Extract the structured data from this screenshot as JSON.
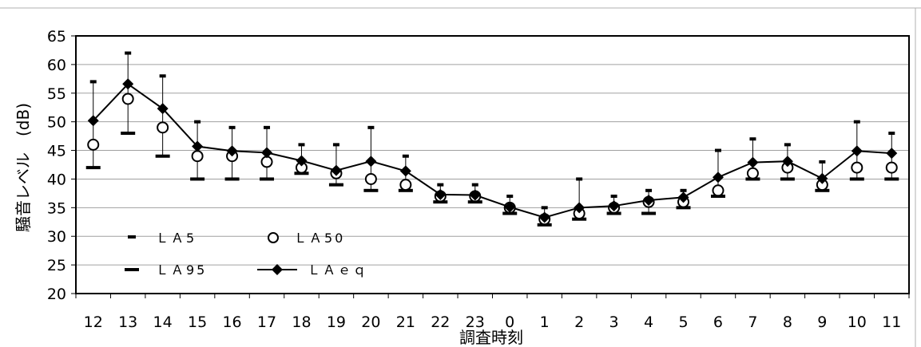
{
  "chart_data": {
    "type": "line",
    "xlabel": "調査時刻",
    "ylabel": "騒音レベル　(dB)",
    "ylim": [
      20,
      65
    ],
    "yticks": [
      20,
      25,
      30,
      35,
      40,
      45,
      50,
      55,
      60,
      65
    ],
    "grid": true,
    "legend_position": "bottom-left",
    "categories": [
      "12",
      "13",
      "14",
      "15",
      "16",
      "17",
      "18",
      "19",
      "20",
      "21",
      "22",
      "23",
      "0",
      "1",
      "2",
      "3",
      "4",
      "5",
      "6",
      "7",
      "8",
      "9",
      "10",
      "11"
    ],
    "series": [
      {
        "name": "ＬＡ5",
        "marker": "small-dash",
        "values": [
          57,
          62,
          58,
          50,
          49,
          49,
          46,
          46,
          49,
          44,
          39,
          39,
          37,
          35,
          40,
          37,
          38,
          38,
          45,
          47,
          46,
          43,
          50,
          48
        ]
      },
      {
        "name": "ＬＡ50",
        "marker": "open-circle",
        "values": [
          46,
          54,
          49,
          44,
          44,
          43,
          42,
          41,
          40,
          39,
          37,
          37,
          35,
          33,
          34,
          35,
          36,
          36,
          38,
          41,
          42,
          39,
          42,
          42
        ]
      },
      {
        "name": "ＬＡ95",
        "marker": "long-dash",
        "values": [
          42,
          48,
          44,
          40,
          40,
          40,
          41,
          39,
          38,
          38,
          36,
          36,
          34,
          32,
          33,
          34,
          34,
          35,
          37,
          40,
          40,
          38,
          40,
          40
        ]
      },
      {
        "name": "ＬＡｅｑ",
        "marker": "filled-diamond",
        "values": [
          50.2,
          56.6,
          52.3,
          45.7,
          44.9,
          44.6,
          43.2,
          41.5,
          43.1,
          41.4,
          37.3,
          37.2,
          35.1,
          33.3,
          35,
          35.3,
          36.3,
          36.8,
          40.3,
          42.9,
          43.1,
          40.1,
          44.9,
          44.5
        ]
      }
    ]
  }
}
